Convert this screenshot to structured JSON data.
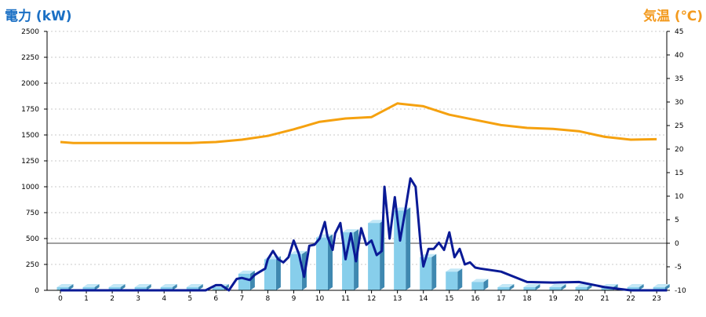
{
  "chart_data": {
    "type": "bar+line",
    "left_axis": {
      "label": "電力 (kW)",
      "ylim": [
        0,
        2500
      ],
      "ticks": [
        0,
        250,
        500,
        750,
        1000,
        1250,
        1500,
        1750,
        2000,
        2250,
        2500
      ]
    },
    "right_axis": {
      "label": "気温 (℃)",
      "ylim": [
        -10,
        45
      ],
      "ticks": [
        -10,
        -5,
        0,
        5,
        10,
        15,
        20,
        25,
        30,
        35,
        40,
        45
      ]
    },
    "x_ticks": [
      "0",
      "1",
      "2",
      "3",
      "4",
      "5",
      "6",
      "7",
      "8",
      "9",
      "10",
      "11",
      "12",
      "13",
      "14",
      "15",
      "16",
      "17",
      "18",
      "19",
      "20",
      "21",
      "22",
      "23"
    ],
    "grid": true,
    "reference_line": {
      "axis": "right",
      "value": 0
    },
    "series": [
      {
        "kind": "bar",
        "axis": "left",
        "color": "#87ceeb",
        "values": [
          30,
          30,
          30,
          30,
          30,
          30,
          30,
          160,
          300,
          350,
          510,
          560,
          650,
          770,
          320,
          180,
          80,
          30,
          30,
          30,
          30,
          30,
          30,
          30
        ]
      },
      {
        "kind": "line",
        "axis": "left",
        "color": "#0a1a96",
        "x": [
          0,
          1,
          2,
          3,
          4,
          5,
          5.6,
          6,
          6.2,
          6.5,
          6.8,
          7,
          7.3,
          7.5,
          7.7,
          7.9,
          8,
          8.2,
          8.4,
          8.6,
          8.8,
          9,
          9.2,
          9.4,
          9.6,
          9.8,
          10,
          10.2,
          10.3,
          10.5,
          10.6,
          10.8,
          11,
          11.2,
          11.4,
          11.6,
          11.8,
          12,
          12.2,
          12.4,
          12.5,
          12.7,
          12.9,
          13.1,
          13.3,
          13.5,
          13.7,
          13.9,
          14,
          14.2,
          14.4,
          14.6,
          14.8,
          15,
          15.2,
          15.4,
          15.6,
          15.8,
          16,
          16.2,
          17,
          18,
          19,
          20,
          21,
          22,
          23.4
        ],
        "y": [
          0,
          0,
          0,
          0,
          0,
          0,
          0,
          50,
          50,
          0,
          110,
          120,
          100,
          150,
          180,
          210,
          300,
          380,
          300,
          270,
          320,
          480,
          350,
          130,
          430,
          440,
          500,
          660,
          520,
          390,
          550,
          650,
          300,
          550,
          280,
          600,
          440,
          480,
          340,
          380,
          1000,
          500,
          900,
          480,
          770,
          1080,
          1000,
          420,
          230,
          400,
          400,
          460,
          390,
          560,
          320,
          400,
          250,
          270,
          220,
          210,
          180,
          80,
          75,
          80,
          30,
          0,
          0
        ]
      },
      {
        "kind": "line",
        "axis": "right",
        "color": "#f5a10f",
        "x": [
          0,
          0.5,
          1,
          2,
          3,
          4,
          5,
          6,
          7,
          8,
          9,
          10,
          11,
          12,
          13,
          14,
          15,
          16,
          17,
          18,
          19,
          20,
          21,
          22,
          23
        ],
        "y": [
          21.5,
          21.3,
          21.3,
          21.3,
          21.3,
          21.3,
          21.3,
          21.5,
          22,
          22.8,
          24.2,
          25.8,
          26.5,
          26.8,
          29.7,
          29.1,
          27.3,
          26.2,
          25.1,
          24.5,
          24.3,
          23.8,
          22.6,
          22,
          22.1
        ]
      }
    ]
  }
}
